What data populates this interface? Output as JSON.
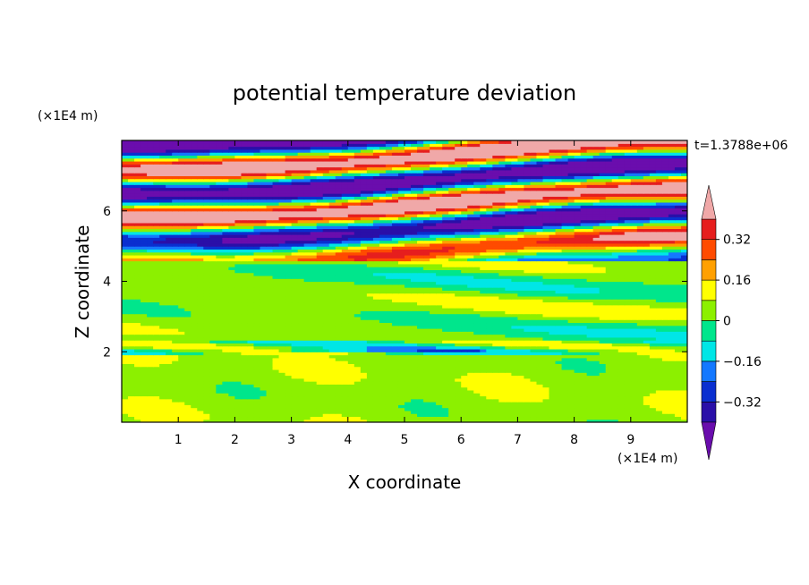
{
  "chart_data": {
    "type": "heatmap",
    "title": "potential temperature deviation",
    "xlabel": "X coordinate",
    "ylabel": "Z coordinate",
    "x_unit": "(×1E4 m)",
    "y_unit": "(×1E4 m)",
    "time_label": "t=1.3788e+06",
    "xlim": [
      0,
      10
    ],
    "ylim": [
      0,
      8
    ],
    "x_ticks": [
      1,
      2,
      3,
      4,
      5,
      6,
      7,
      8,
      9
    ],
    "y_ticks": [
      2,
      4,
      6
    ],
    "colorbar": {
      "levels": [
        -0.4,
        -0.32,
        -0.24,
        -0.16,
        -0.08,
        0,
        0.08,
        0.16,
        0.24,
        0.32,
        0.4
      ],
      "labels": [
        "0.32",
        "0.16",
        "0",
        "−0.16",
        "−0.32"
      ],
      "label_values": [
        0.32,
        0.16,
        0,
        -0.16,
        -0.32
      ],
      "colors": [
        "#6a0dad",
        "#2a0fa8",
        "#0a2fd0",
        "#1478ff",
        "#00e6e6",
        "#00e68c",
        "#8cf000",
        "#ffff00",
        "#ffa000",
        "#ff4b00",
        "#e61e1e",
        "#f0a8a8"
      ]
    },
    "grid": false,
    "legend": "colorbar-right"
  }
}
